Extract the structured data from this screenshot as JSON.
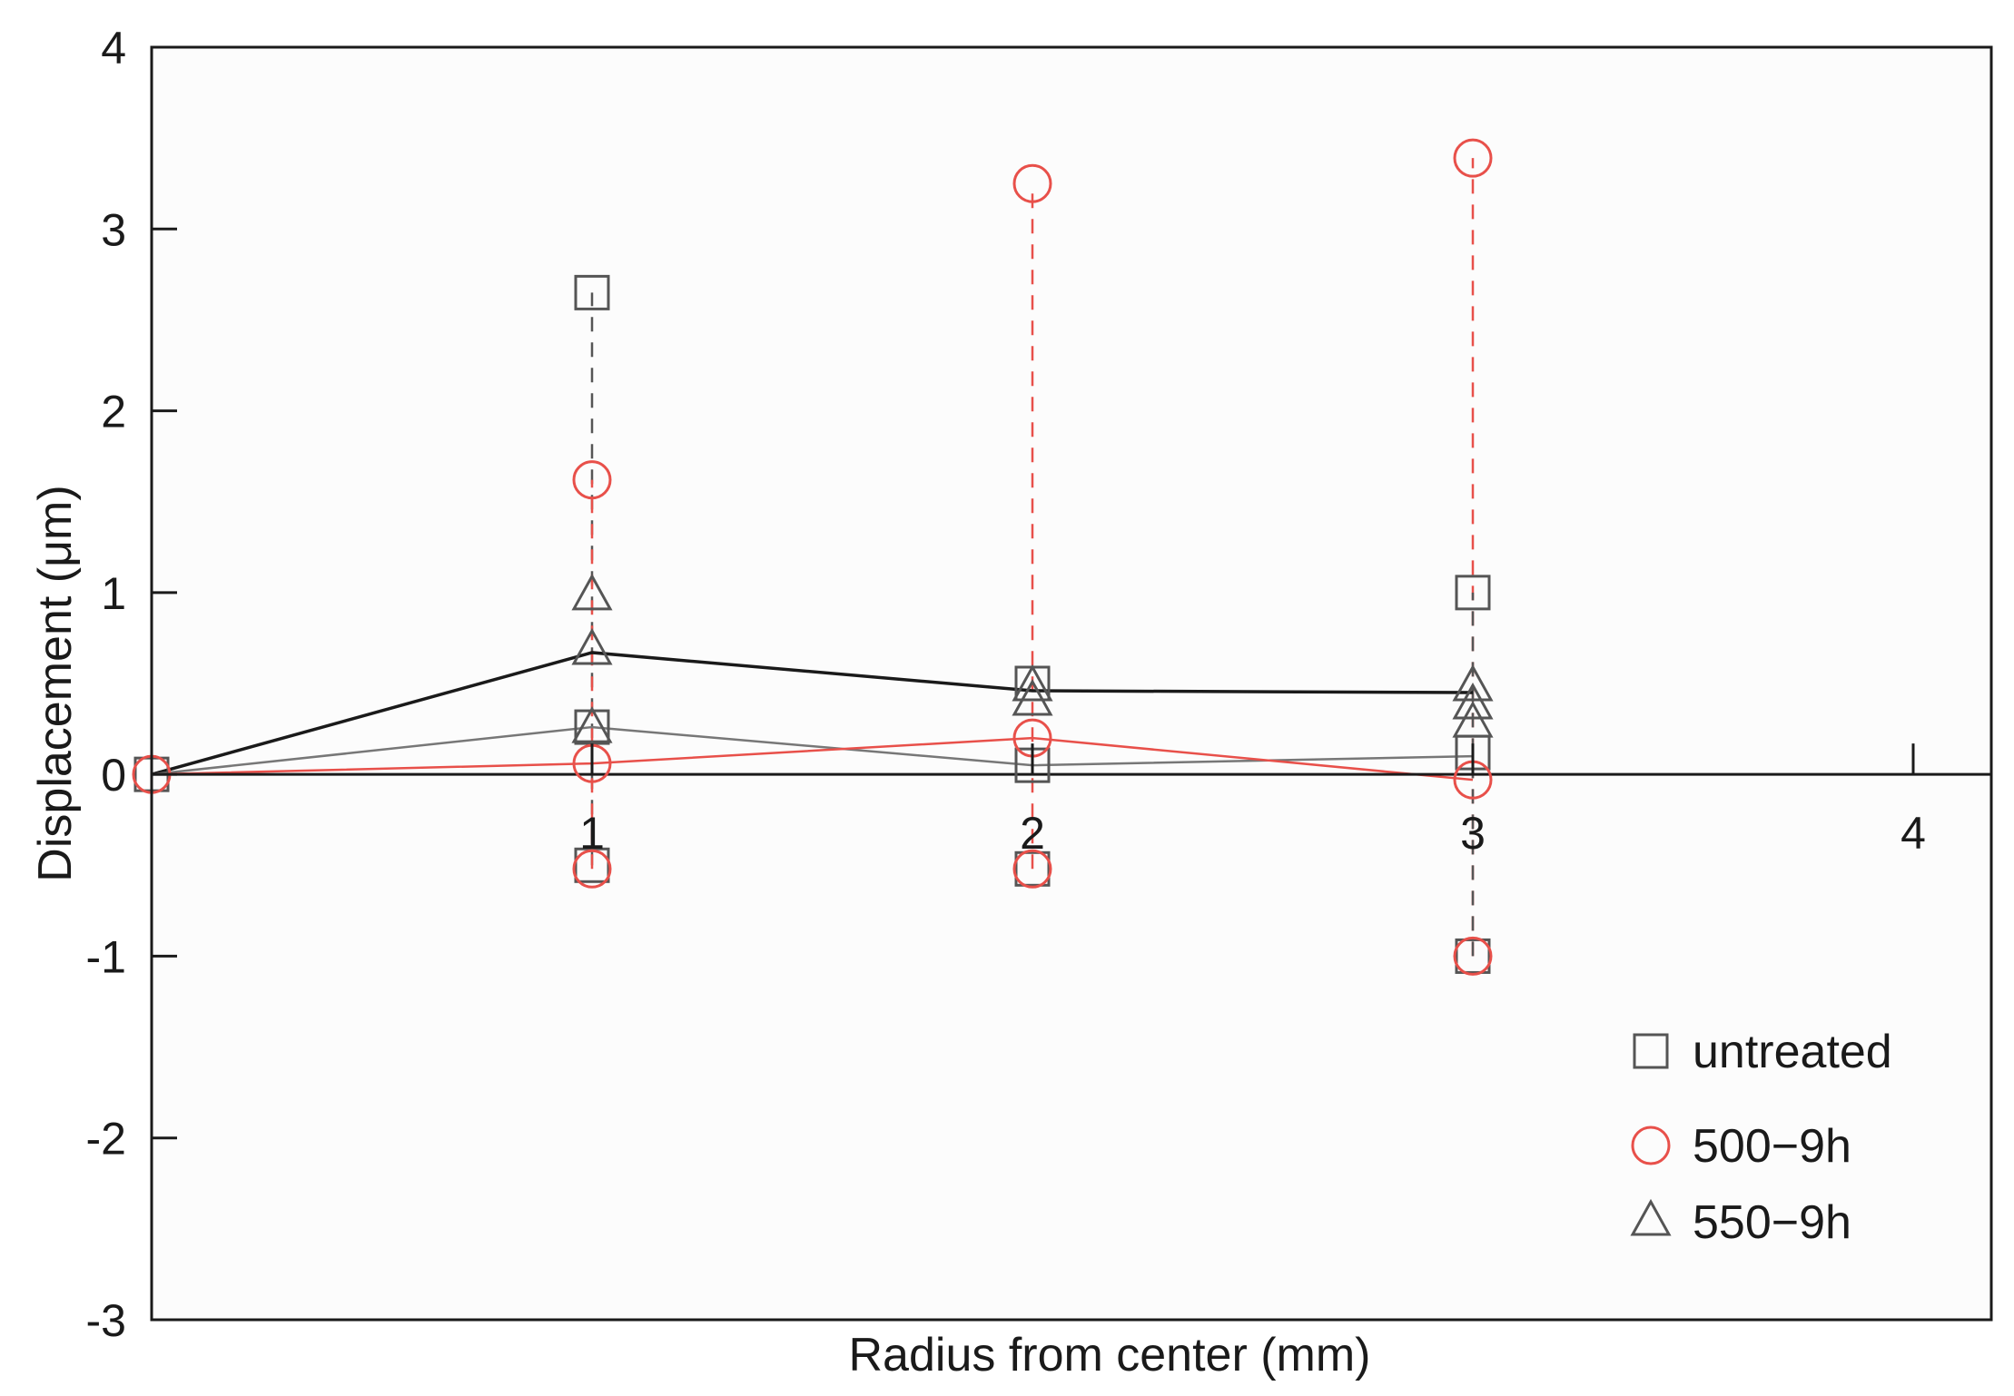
{
  "chart_data": {
    "type": "scatter",
    "xlabel": "Radius from center (mm)",
    "ylabel": "Displacement (μm)",
    "xlim": [
      0,
      4.2
    ],
    "ylim": [
      -3,
      4
    ],
    "x_ticks": [
      1,
      2,
      3,
      4
    ],
    "y_ticks": [
      -3,
      -2,
      -1,
      0,
      1,
      2,
      3,
      4
    ],
    "grid": false,
    "legend_position": "bottom-right",
    "colors": {
      "untreated": "#555555",
      "500-9h": "#e8504a",
      "550-9h": "#555555",
      "mean_line_dark": "#1a1a1a",
      "mean_line_gray": "#777777",
      "mean_line_red": "#e8504a"
    },
    "series": [
      {
        "name": "untreated",
        "marker": "square",
        "points": [
          {
            "x": 0,
            "y": 0
          },
          {
            "x": 1,
            "y": 2.65
          },
          {
            "x": 1,
            "y": 0.26
          },
          {
            "x": 1,
            "y": -0.5
          },
          {
            "x": 2,
            "y": 0.5
          },
          {
            "x": 2,
            "y": 0.05
          },
          {
            "x": 2,
            "y": -0.52
          },
          {
            "x": 3,
            "y": 1.0
          },
          {
            "x": 3,
            "y": 0.12
          },
          {
            "x": 3,
            "y": -1.0
          }
        ]
      },
      {
        "name": "500-9h",
        "marker": "circle",
        "points": [
          {
            "x": 0,
            "y": 0
          },
          {
            "x": 1,
            "y": 1.62
          },
          {
            "x": 1,
            "y": 0.06
          },
          {
            "x": 1,
            "y": -0.52
          },
          {
            "x": 2,
            "y": 3.25
          },
          {
            "x": 2,
            "y": 0.2
          },
          {
            "x": 2,
            "y": -0.52
          },
          {
            "x": 3,
            "y": 3.39
          },
          {
            "x": 3,
            "y": -0.03
          },
          {
            "x": 3,
            "y": -1.0
          }
        ]
      },
      {
        "name": "550-9h",
        "marker": "triangle",
        "points": [
          {
            "x": 1,
            "y": 0.98
          },
          {
            "x": 1,
            "y": 0.68
          },
          {
            "x": 1,
            "y": 0.25
          },
          {
            "x": 2,
            "y": 0.48
          },
          {
            "x": 2,
            "y": 0.4
          },
          {
            "x": 3,
            "y": 0.48
          },
          {
            "x": 3,
            "y": 0.38
          },
          {
            "x": 3,
            "y": 0.28
          }
        ]
      }
    ],
    "error_bars": [
      {
        "x": 1,
        "from": -0.5,
        "to": 2.65,
        "color": "#555555"
      },
      {
        "x": 1,
        "from": -0.52,
        "to": 1.62,
        "color": "#e8504a"
      },
      {
        "x": 2,
        "from": -0.52,
        "to": 3.25,
        "color": "#e8504a"
      },
      {
        "x": 3,
        "from": -1.0,
        "to": 3.39,
        "color": "#e8504a"
      },
      {
        "x": 3,
        "from": -1.0,
        "to": 1.0,
        "color": "#555555"
      }
    ],
    "mean_lines": [
      {
        "series": "550-9h",
        "x": [
          0,
          1,
          2,
          3
        ],
        "y": [
          0,
          0.67,
          0.46,
          0.45
        ],
        "color": "#1a1a1a"
      },
      {
        "series": "untreated",
        "x": [
          0,
          1,
          2,
          3
        ],
        "y": [
          0,
          0.26,
          0.05,
          0.1
        ],
        "color": "#777777"
      },
      {
        "series": "500-9h",
        "x": [
          0,
          1,
          2,
          3
        ],
        "y": [
          0,
          0.06,
          0.2,
          -0.03
        ],
        "color": "#e8504a"
      }
    ],
    "legend": [
      {
        "label": "untreated",
        "marker": "square",
        "color": "#555555"
      },
      {
        "label": "500−9h",
        "marker": "circle",
        "color": "#e8504a"
      },
      {
        "label": "550−9h",
        "marker": "triangle",
        "color": "#555555"
      }
    ]
  }
}
